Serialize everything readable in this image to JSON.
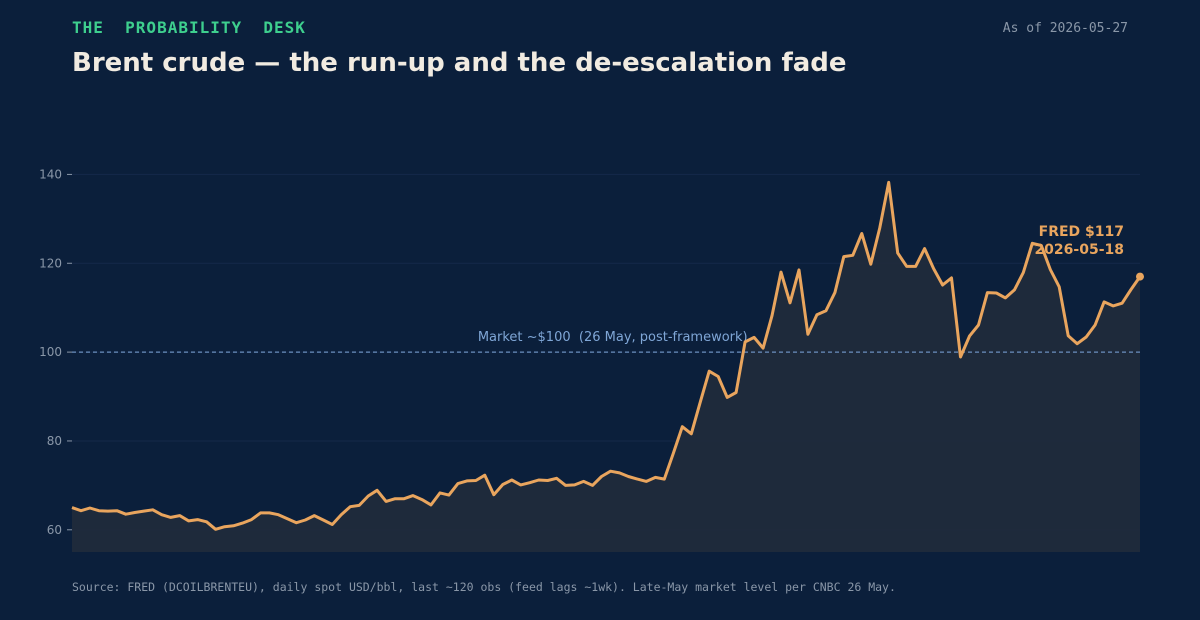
{
  "header": {
    "kicker": "THE  PROBABILITY  DESK",
    "as_of": "As of 2026-05-27",
    "title": "Brent crude — the run-up and the de-escalation fade"
  },
  "footer": {
    "source": "Source: FRED (DCOILBRENTEU), daily spot USD/bbl, last ~120 obs (feed lags ~1wk). Late-May market level per CNBC 26 May."
  },
  "colors": {
    "background": "#0b1f3b",
    "kicker": "#3ecf8e",
    "line": "#e9a55e",
    "area": "#212b3c",
    "reference": "#6b8fbf",
    "reference_text": "#7fa6d6",
    "axis_text": "#8a97a8",
    "grid": "#15294a"
  },
  "chart_data": {
    "type": "line",
    "title": "Brent crude — the run-up and the de-escalation fade",
    "xlabel": "",
    "ylabel": "",
    "ylim": [
      55,
      150
    ],
    "yticks": [
      60,
      80,
      100,
      120,
      140
    ],
    "grid": true,
    "series": [
      {
        "values": [
          65.0,
          64.3,
          64.9,
          64.3,
          64.2,
          64.3,
          63.5,
          63.9,
          64.2,
          64.5,
          63.4,
          62.8,
          63.2,
          62.0,
          62.3,
          61.8,
          60.1,
          60.7,
          60.9,
          61.5,
          62.3,
          63.8,
          63.8,
          63.4,
          62.5,
          61.6,
          62.2,
          63.2,
          62.2,
          61.2,
          63.4,
          65.2,
          65.5,
          67.6,
          68.9,
          66.4,
          67.0,
          67.0,
          67.7,
          66.8,
          65.6,
          68.3,
          67.8,
          70.4,
          71.0,
          71.1,
          72.3,
          67.9,
          70.2,
          71.2,
          70.1,
          70.6,
          71.2,
          71.1,
          71.6,
          70.0,
          70.1,
          70.9,
          70.0,
          72.0,
          73.2,
          72.8,
          72.0,
          71.4,
          70.9,
          71.8,
          71.4,
          77.2,
          83.2,
          81.6,
          88.7,
          95.7,
          94.5,
          89.8,
          90.9,
          102.3,
          103.3,
          100.9,
          108.2,
          118.0,
          111.1,
          118.5,
          104.0,
          108.4,
          109.3,
          113.4,
          121.5,
          121.8,
          126.7,
          119.8,
          127.9,
          138.2,
          122.3,
          119.3,
          119.3,
          123.3,
          118.8,
          115.1,
          116.7,
          98.9,
          103.6,
          106.1,
          113.4,
          113.3,
          112.2,
          114.0,
          117.9,
          124.5,
          124.0,
          118.6,
          114.7,
          103.7,
          101.9,
          103.4,
          106.1,
          111.3,
          110.4,
          111.0,
          114.1,
          117.0
        ]
      }
    ],
    "reference_line": {
      "value": 100,
      "label": "Market ~$100  (26 May, post-framework)"
    },
    "end_annotation": {
      "line1": "FRED $117",
      "line2": "2026-05-18"
    }
  }
}
